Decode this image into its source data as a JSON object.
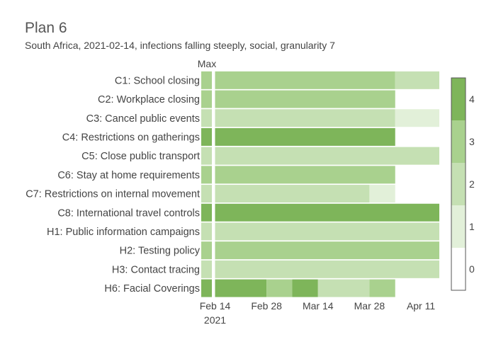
{
  "title": "Plan 6",
  "subtitle": "South Africa, 2021-02-14, infections falling steeply, social, granularity 7",
  "chart_data": {
    "type": "heatmap",
    "title": "Plan 6",
    "subtitle": "South Africa, 2021-02-14, infections falling steeply, social, granularity 7",
    "max_label": "Max",
    "x_ticks": [
      "Feb 14",
      "Feb 28",
      "Mar 14",
      "Mar 28",
      "Apr 11"
    ],
    "x_tick_year": "2021",
    "rows": [
      {
        "label": "C1: School closing",
        "max": 3,
        "segments": [
          {
            "start": "2021-02-14",
            "end": "2021-04-04",
            "value": 3
          },
          {
            "start": "2021-04-04",
            "end": "2021-04-16",
            "value": 2
          }
        ]
      },
      {
        "label": "C2: Workplace closing",
        "max": 3,
        "segments": [
          {
            "start": "2021-02-14",
            "end": "2021-04-04",
            "value": 3
          }
        ]
      },
      {
        "label": "C3: Cancel public events",
        "max": 2,
        "segments": [
          {
            "start": "2021-02-14",
            "end": "2021-04-04",
            "value": 2
          },
          {
            "start": "2021-04-04",
            "end": "2021-04-16",
            "value": 1
          }
        ]
      },
      {
        "label": "C4: Restrictions on gatherings",
        "max": 4,
        "segments": [
          {
            "start": "2021-02-14",
            "end": "2021-04-04",
            "value": 4
          }
        ]
      },
      {
        "label": "C5: Close public transport",
        "max": 2,
        "segments": [
          {
            "start": "2021-02-14",
            "end": "2021-04-16",
            "value": 2
          }
        ]
      },
      {
        "label": "C6: Stay at home requirements",
        "max": 3,
        "segments": [
          {
            "start": "2021-02-14",
            "end": "2021-04-04",
            "value": 3
          }
        ]
      },
      {
        "label": "C7: Restrictions on internal movement",
        "max": 2,
        "segments": [
          {
            "start": "2021-02-14",
            "end": "2021-03-28",
            "value": 2
          },
          {
            "start": "2021-03-28",
            "end": "2021-04-04",
            "value": 1
          }
        ]
      },
      {
        "label": "C8: International travel controls",
        "max": 4,
        "segments": [
          {
            "start": "2021-02-14",
            "end": "2021-04-16",
            "value": 4
          }
        ]
      },
      {
        "label": "H1: Public information campaigns",
        "max": 2,
        "segments": [
          {
            "start": "2021-02-14",
            "end": "2021-04-16",
            "value": 2
          }
        ]
      },
      {
        "label": "H2: Testing policy",
        "max": 3,
        "segments": [
          {
            "start": "2021-02-14",
            "end": "2021-04-16",
            "value": 3
          }
        ]
      },
      {
        "label": "H3: Contact tracing",
        "max": 2,
        "segments": [
          {
            "start": "2021-02-14",
            "end": "2021-04-16",
            "value": 2
          }
        ]
      },
      {
        "label": "H6: Facial Coverings",
        "max": 4,
        "segments": [
          {
            "start": "2021-02-14",
            "end": "2021-02-28",
            "value": 4
          },
          {
            "start": "2021-02-28",
            "end": "2021-03-07",
            "value": 3
          },
          {
            "start": "2021-03-07",
            "end": "2021-03-14",
            "value": 4
          },
          {
            "start": "2021-03-14",
            "end": "2021-03-28",
            "value": 2
          },
          {
            "start": "2021-03-28",
            "end": "2021-04-04",
            "value": 3
          }
        ]
      }
    ],
    "colorbar": {
      "ticks": [
        "0",
        "1",
        "2",
        "3",
        "4"
      ],
      "colors": [
        "#ffffff",
        "#e2f0d9",
        "#c5e0b3",
        "#a9d18e",
        "#7eb55a"
      ]
    }
  }
}
